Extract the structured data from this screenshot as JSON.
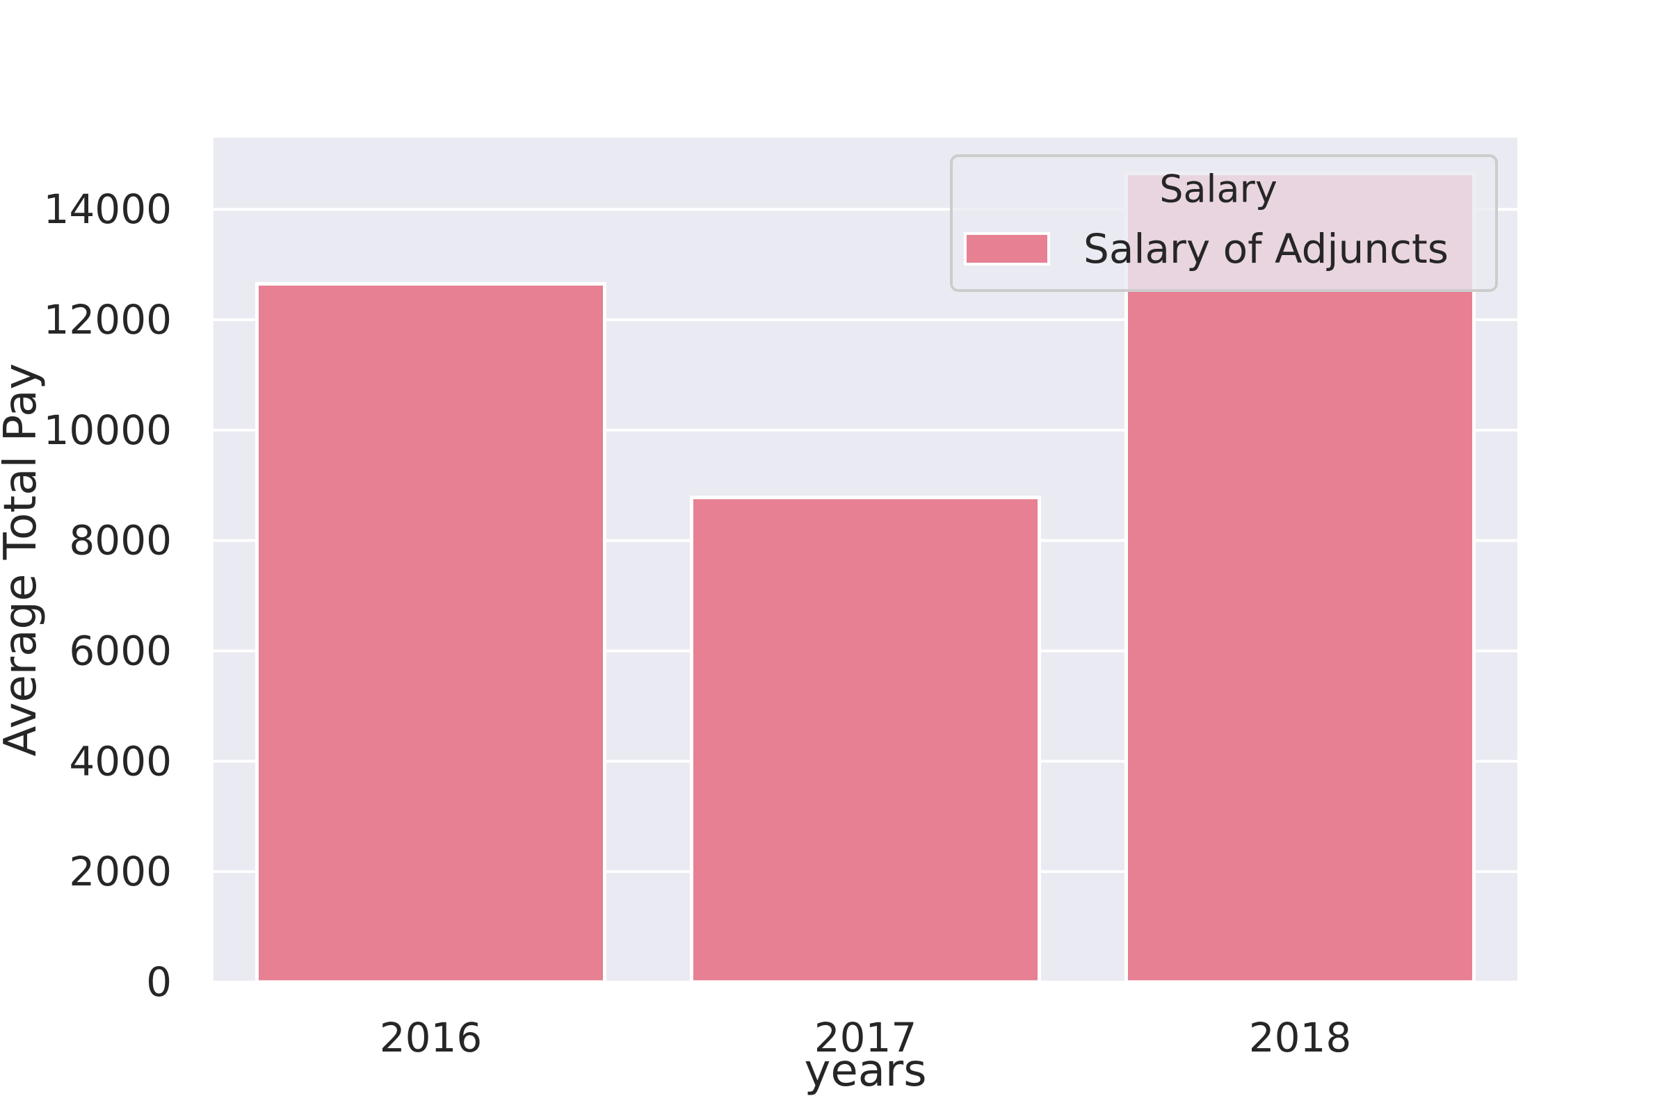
{
  "chart_data": {
    "type": "bar",
    "title": "",
    "xlabel": "years",
    "ylabel": "Average Total Pay",
    "categories": [
      "2016",
      "2017",
      "2018"
    ],
    "series": [
      {
        "name": "Salary of Adjuncts",
        "values": [
          12650,
          8780,
          14650
        ]
      }
    ],
    "ylim": [
      0,
      15300
    ],
    "yticks": [
      0,
      2000,
      4000,
      6000,
      8000,
      10000,
      12000,
      14000
    ],
    "grid": true,
    "legend": {
      "title": "Salary",
      "placement": "top-right"
    },
    "colors": {
      "bar": "#e68092",
      "plot_background": "#eaeaf2",
      "grid": "#ffffff",
      "text": "#262626"
    }
  }
}
